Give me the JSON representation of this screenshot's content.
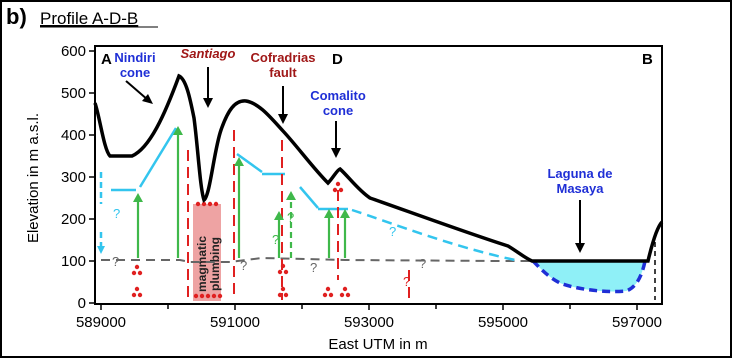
{
  "title": {
    "letter": "b)",
    "text": "Profile A-D-B"
  },
  "axes": {
    "ylabel": "Elevation in m a.s.l.",
    "xlabel": "East UTM in m",
    "y_ticks": [
      "0",
      "100",
      "200",
      "300",
      "400",
      "500",
      "600"
    ],
    "x_ticks": [
      "589000",
      "591000",
      "593000",
      "595000",
      "597000"
    ]
  },
  "points": {
    "a": "A",
    "d": "D",
    "b": "B"
  },
  "labels": {
    "nindiri": [
      "Nindiri",
      "cone"
    ],
    "santiago": "Santiago",
    "cofradrias": [
      "Cofradrias",
      "fault"
    ],
    "comalito": [
      "Comalito",
      "cone"
    ],
    "laguna": [
      "Laguna de",
      "Masaya"
    ],
    "plumbing": [
      "magmatic",
      "plumbing"
    ]
  },
  "qmark": "?",
  "colors": {
    "topography": "#000000",
    "groundwater_cyan": "#33c5ee",
    "groundwater_grey": "#666666",
    "fault_red": "#e02020",
    "upflow_green": "#3fb84a",
    "lake_fill": "#8ff0f7",
    "lake_bottom": "#1f2fd6",
    "plumbing_fill": "#eea3a3"
  }
}
